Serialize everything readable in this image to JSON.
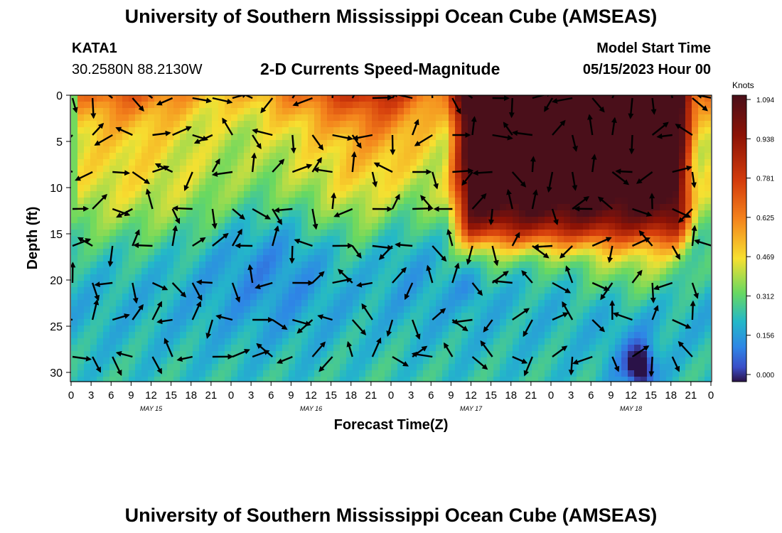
{
  "title": "University of Southern Mississippi Ocean Cube (AMSEAS)",
  "footer_title": "University of Southern Mississippi Ocean Cube (AMSEAS)",
  "station": {
    "id": "KATA1",
    "coords": "30.2580N  88.2130W"
  },
  "subtitle": "2-D Currents Speed-Magnitude",
  "model_start": {
    "label": "Model Start Time",
    "value": "05/15/2023 Hour 00"
  },
  "chart_data": {
    "type": "heatmap",
    "title": "2-D Currents Speed-Magnitude",
    "xlabel": "Forecast Time(Z)",
    "ylabel": "Depth (ft)",
    "x_ticks": [
      "0",
      "3",
      "6",
      "9",
      "12",
      "15",
      "18",
      "21",
      "0",
      "3",
      "6",
      "9",
      "12",
      "15",
      "18",
      "21",
      "0",
      "3",
      "6",
      "9",
      "12",
      "15",
      "18",
      "21",
      "0",
      "3",
      "6",
      "9",
      "12",
      "15",
      "18",
      "21",
      "0"
    ],
    "x_day_labels": [
      {
        "label": "MAY 15",
        "hour": 12
      },
      {
        "label": "MAY 16",
        "hour": 36
      },
      {
        "label": "MAY 17",
        "hour": 60
      },
      {
        "label": "MAY 18",
        "hour": 84
      }
    ],
    "x_range_hours": [
      0,
      96
    ],
    "y_ticks": [
      0,
      5,
      10,
      15,
      20,
      25,
      30
    ],
    "y_range_ft": [
      0,
      31
    ],
    "y_inverted": true,
    "colorbar": {
      "label": "Knots",
      "ticks": [
        "1.094",
        "0.938",
        "0.781",
        "0.625",
        "0.469",
        "0.312",
        "0.156",
        "0.000"
      ],
      "range": [
        0,
        1.094
      ],
      "colors": [
        "#4a0f1a",
        "#8c1306",
        "#d43c0c",
        "#f4821c",
        "#f7e030",
        "#68d861",
        "#23b8c8",
        "#2e86e6",
        "#3a4ec8",
        "#2a1248"
      ]
    },
    "vectors": "current direction arrows on a ~3-hour by ~4-ft grid"
  }
}
